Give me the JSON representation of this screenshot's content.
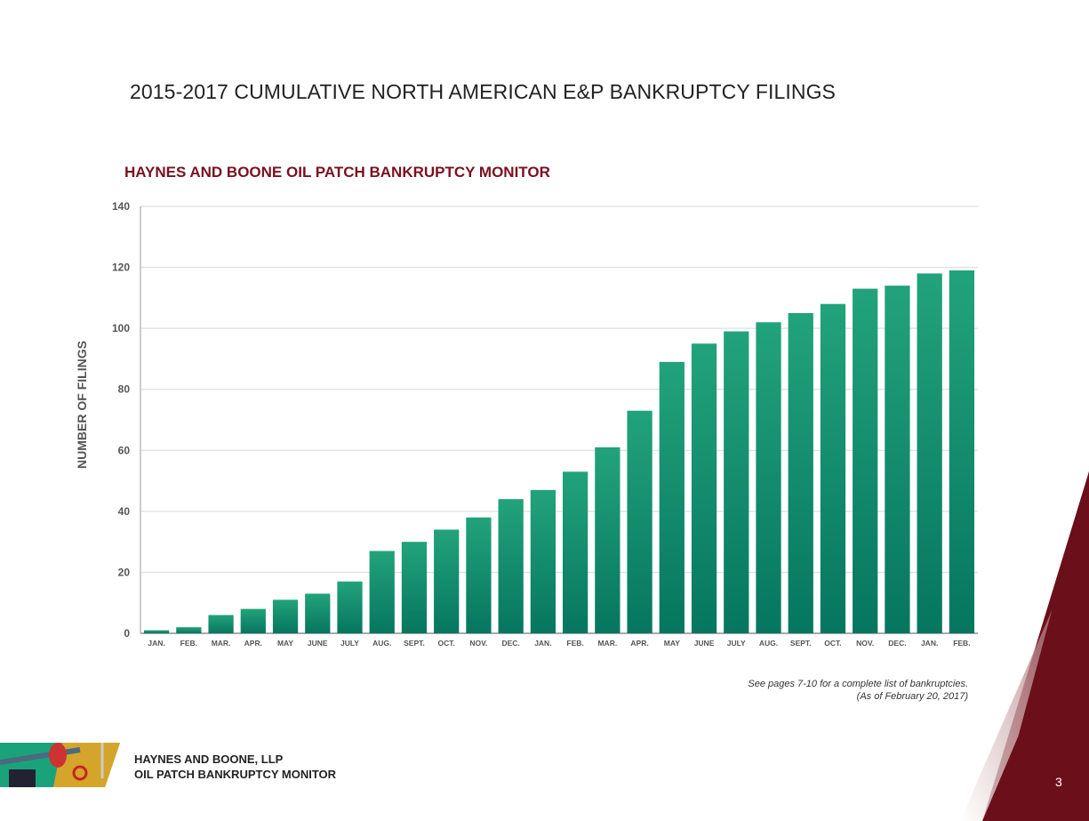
{
  "header": {
    "title": "2015-2017 CUMULATIVE NORTH AMERICAN E&P BANKRUPTCY FILINGS"
  },
  "note": {
    "line1": "See pages 7-10 for a complete list of bankruptcies.",
    "line2": "(As of February 20, 2017)"
  },
  "footer": {
    "line1": "HAYNES AND BOONE, LLP",
    "line2": "OIL PATCH BANKRUPTCY MONITOR",
    "page_number": "3"
  },
  "colors": {
    "bar_top": "#22a37a",
    "bar_bottom": "#06765f",
    "accent": "#6b0f1a",
    "subtitle": "#7a1020"
  },
  "chart_data": {
    "type": "bar",
    "title": "HAYNES AND BOONE OIL PATCH BANKRUPTCY MONITOR",
    "xlabel": "",
    "ylabel": "NUMBER OF FILINGS",
    "ylim": [
      0,
      140
    ],
    "yticks": [
      0,
      20,
      40,
      60,
      80,
      100,
      120,
      140
    ],
    "grid": true,
    "categories": [
      "JAN.",
      "FEB.",
      "MAR.",
      "APR.",
      "MAY",
      "JUNE",
      "JULY",
      "AUG.",
      "SEPT.",
      "OCT.",
      "NOV.",
      "DEC.",
      "JAN.",
      "FEB.",
      "MAR.",
      "APR.",
      "MAY",
      "JUNE",
      "JULY",
      "AUG.",
      "SEPT.",
      "OCT.",
      "NOV.",
      "DEC.",
      "JAN.",
      "FEB."
    ],
    "values": [
      1,
      2,
      6,
      8,
      11,
      13,
      17,
      27,
      30,
      34,
      38,
      44,
      47,
      53,
      61,
      73,
      89,
      95,
      99,
      102,
      105,
      108,
      113,
      114,
      118,
      119
    ]
  }
}
